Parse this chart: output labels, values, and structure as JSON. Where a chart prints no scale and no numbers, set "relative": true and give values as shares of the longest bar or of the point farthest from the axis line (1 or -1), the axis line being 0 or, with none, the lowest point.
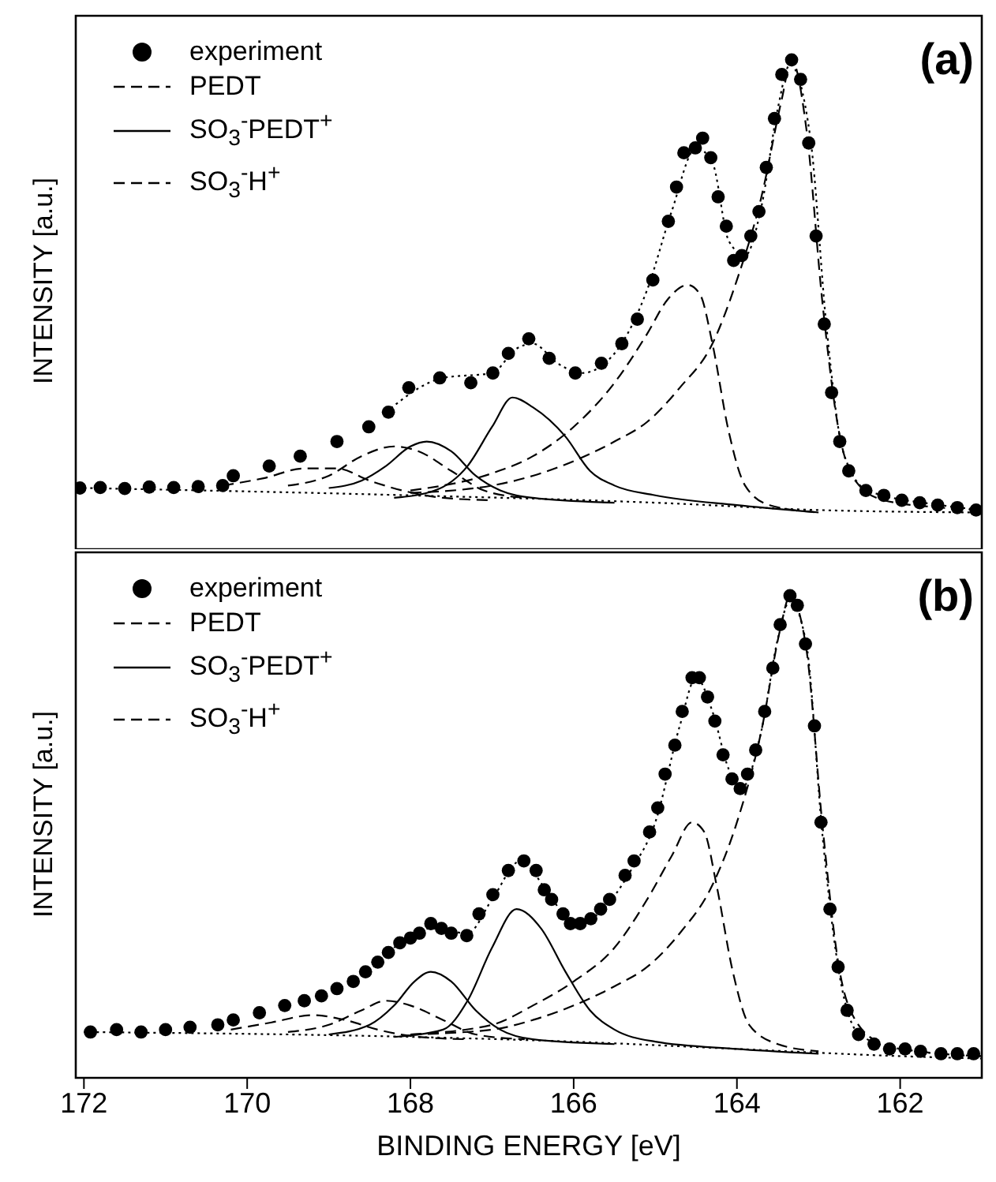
{
  "chart_data": [
    {
      "type": "line",
      "ylabel": "INTENSITY [a.u.]",
      "annotations": [
        "(a)"
      ],
      "relative": true,
      "xlim": [
        172.1,
        161.0
      ],
      "xticks": [
        172,
        170,
        168,
        166,
        164,
        162
      ],
      "tick_labels": false,
      "legend": "top left",
      "series": [
        {
          "name": "experiment",
          "type": "scatter",
          "marker": "circle",
          "color": "#000000",
          "x": [
            172.05,
            171.8,
            171.5,
            171.2,
            170.9,
            170.6,
            170.3,
            170.17,
            169.73,
            169.35,
            168.9,
            168.51,
            168.27,
            168.02,
            167.64,
            167.26,
            166.99,
            166.8,
            166.55,
            166.3,
            165.98,
            165.66,
            165.41,
            165.22,
            165.03,
            164.84,
            164.74,
            164.65,
            164.51,
            164.42,
            164.32,
            164.23,
            164.13,
            164.04,
            163.94,
            163.83,
            163.73,
            163.64,
            163.54,
            163.45,
            163.33,
            163.22,
            163.12,
            163.03,
            162.93,
            162.84,
            162.74,
            162.63,
            162.42,
            162.2,
            161.98,
            161.76,
            161.54,
            161.3,
            161.07
          ],
          "values": [
            0.125,
            0.126,
            0.124,
            0.127,
            0.126,
            0.128,
            0.13,
            0.15,
            0.17,
            0.19,
            0.22,
            0.25,
            0.28,
            0.33,
            0.35,
            0.34,
            0.36,
            0.4,
            0.43,
            0.39,
            0.36,
            0.38,
            0.42,
            0.47,
            0.55,
            0.67,
            0.74,
            0.81,
            0.82,
            0.84,
            0.8,
            0.72,
            0.66,
            0.59,
            0.6,
            0.64,
            0.69,
            0.78,
            0.88,
            0.97,
            1.0,
            0.96,
            0.83,
            0.64,
            0.46,
            0.32,
            0.22,
            0.16,
            0.12,
            0.11,
            0.1,
            0.095,
            0.09,
            0.085,
            0.08
          ]
        },
        {
          "name": "PEDT",
          "line_style": "dashed",
          "marker": "none",
          "color": "#000000",
          "x": [
            168,
            167,
            166.5,
            166,
            165.5,
            165.1,
            164.7,
            164.3,
            164.0,
            163.7,
            163.45,
            163.33,
            163.15,
            162.95,
            162.75,
            162.55,
            162.2,
            161.5,
            161.0
          ],
          "values": [
            0.115,
            0.13,
            0.15,
            0.18,
            0.22,
            0.26,
            0.33,
            0.42,
            0.55,
            0.72,
            0.92,
            1.0,
            0.86,
            0.5,
            0.24,
            0.14,
            0.1,
            0.085,
            0.08
          ]
        },
        {
          "name": "SO$_{3}$$^{-}$PEDT$^{+}$",
          "type": "line",
          "line_style": "solid",
          "marker": "none",
          "color": "#000000",
          "x": [
            168.2,
            167.7,
            167.3,
            167.0,
            166.75,
            166.5,
            166.1,
            165.8,
            165.5,
            165.0,
            164.0,
            163.0
          ],
          "values": [
            0.105,
            0.12,
            0.17,
            0.25,
            0.31,
            0.29,
            0.23,
            0.16,
            0.13,
            0.11,
            0.09,
            0.075
          ]
        },
        {
          "name": "SO$_{3}$$^{-}$H$^{+}$",
          "type": "line",
          "line_style": "dashed",
          "marker": "none",
          "color": "#000000",
          "x": [
            169.5,
            169.0,
            168.6,
            168.2,
            167.9,
            167.5,
            167.1,
            166.6
          ],
          "values": [
            0.13,
            0.15,
            0.19,
            0.21,
            0.2,
            0.16,
            0.12,
            0.105
          ]
        },
        {
          "type": "line",
          "line_style": "dashed",
          "marker": "none",
          "color": "#000000",
          "x": [
            168,
            167,
            166.5,
            166,
            165.5,
            165.1,
            164.85,
            164.6,
            164.45,
            164.3,
            164.1,
            163.9,
            163.6,
            163.0
          ],
          "values": [
            0.12,
            0.155,
            0.19,
            0.25,
            0.34,
            0.44,
            0.51,
            0.54,
            0.52,
            0.42,
            0.24,
            0.13,
            0.09,
            0.075
          ]
        },
        {
          "type": "line",
          "line_style": "solid",
          "marker": "none",
          "color": "#000000",
          "x": [
            169.0,
            168.6,
            168.3,
            168.0,
            167.8,
            167.5,
            167.2,
            166.9,
            166.5,
            165.5
          ],
          "values": [
            0.125,
            0.14,
            0.17,
            0.21,
            0.22,
            0.2,
            0.15,
            0.12,
            0.105,
            0.095
          ]
        },
        {
          "type": "line",
          "line_style": "dashed",
          "marker": "none",
          "color": "#000000",
          "x": [
            170.3,
            169.8,
            169.3,
            168.9,
            168.5,
            168.1,
            167.6,
            167.0
          ],
          "values": [
            0.13,
            0.145,
            0.165,
            0.165,
            0.14,
            0.12,
            0.105,
            0.1
          ]
        },
        {
          "type": "line",
          "line_style": "dotted",
          "marker": "none",
          "color": "#000000",
          "x": [
            172,
            168,
            165,
            163,
            161
          ],
          "values": [
            0.125,
            0.11,
            0.095,
            0.08,
            0.075
          ]
        },
        {
          "type": "line",
          "line_style": "dotted",
          "marker": "none",
          "color": "#000000",
          "x": [
            168.3,
            167.6,
            167.0,
            166.7,
            166.5,
            166.2,
            165.9,
            165.5,
            165.1,
            164.8,
            164.5,
            164.3,
            164.1,
            163.9,
            163.7,
            163.5,
            163.35,
            163.1,
            162.9,
            162.7,
            162.4,
            161.5,
            161.0
          ],
          "values": [
            0.28,
            0.35,
            0.36,
            0.41,
            0.42,
            0.38,
            0.36,
            0.4,
            0.53,
            0.69,
            0.82,
            0.79,
            0.63,
            0.6,
            0.7,
            0.9,
            0.99,
            0.84,
            0.45,
            0.2,
            0.12,
            0.09,
            0.08
          ]
        }
      ]
    },
    {
      "type": "line",
      "xlabel": "BINDING ENERGY [eV]",
      "ylabel": "INTENSITY [a.u.]",
      "annotations": [
        "(b)"
      ],
      "relative": true,
      "xlim": [
        172.1,
        161.0
      ],
      "xticks": [
        172,
        170,
        168,
        166,
        164,
        162
      ],
      "tick_labels": "x",
      "legend": "top left",
      "series": [
        {
          "name": "experiment",
          "type": "scatter",
          "marker": "circle",
          "color": "#000000",
          "x": [
            171.92,
            171.6,
            171.3,
            171.0,
            170.7,
            170.36,
            170.17,
            169.85,
            169.54,
            169.3,
            169.09,
            168.9,
            168.7,
            168.55,
            168.4,
            168.27,
            168.13,
            168.0,
            167.89,
            167.75,
            167.62,
            167.5,
            167.31,
            167.16,
            166.99,
            166.8,
            166.61,
            166.46,
            166.36,
            166.27,
            166.13,
            166.04,
            165.92,
            165.79,
            165.67,
            165.56,
            165.37,
            165.26,
            165.07,
            164.97,
            164.88,
            164.76,
            164.67,
            164.55,
            164.46,
            164.36,
            164.27,
            164.17,
            164.06,
            163.96,
            163.87,
            163.77,
            163.66,
            163.56,
            163.47,
            163.35,
            163.26,
            163.16,
            163.05,
            162.97,
            162.86,
            162.76,
            162.65,
            162.51,
            162.32,
            162.13,
            161.94,
            161.75,
            161.5,
            161.3,
            161.1
          ],
          "values": [
            0.095,
            0.1,
            0.095,
            0.1,
            0.105,
            0.11,
            0.12,
            0.135,
            0.15,
            0.16,
            0.17,
            0.185,
            0.2,
            0.22,
            0.24,
            0.26,
            0.28,
            0.29,
            0.3,
            0.32,
            0.31,
            0.3,
            0.295,
            0.34,
            0.38,
            0.43,
            0.45,
            0.43,
            0.39,
            0.37,
            0.34,
            0.32,
            0.32,
            0.33,
            0.35,
            0.37,
            0.42,
            0.45,
            0.51,
            0.56,
            0.63,
            0.69,
            0.76,
            0.83,
            0.83,
            0.79,
            0.74,
            0.67,
            0.62,
            0.6,
            0.63,
            0.68,
            0.76,
            0.85,
            0.94,
            1.0,
            0.98,
            0.9,
            0.73,
            0.53,
            0.35,
            0.23,
            0.14,
            0.09,
            0.07,
            0.06,
            0.06,
            0.055,
            0.05,
            0.05,
            0.05
          ]
        },
        {
          "name": "PEDT",
          "line_style": "dashed",
          "marker": "none",
          "color": "#000000",
          "x": [
            168,
            167,
            166.5,
            166,
            165.5,
            165.1,
            164.7,
            164.3,
            164.0,
            163.7,
            163.47,
            163.35,
            163.15,
            162.95,
            162.75,
            162.55,
            162.2,
            161.5,
            161.0
          ],
          "values": [
            0.09,
            0.1,
            0.12,
            0.15,
            0.19,
            0.23,
            0.3,
            0.4,
            0.53,
            0.72,
            0.93,
            1.0,
            0.89,
            0.52,
            0.23,
            0.12,
            0.07,
            0.05,
            0.045
          ]
        },
        {
          "name": "SO$_{3}$$^{-}$PEDT$^{+}$",
          "type": "line",
          "line_style": "solid",
          "marker": "none",
          "color": "#000000",
          "x": [
            168.2,
            167.6,
            167.3,
            167.0,
            166.7,
            166.4,
            166.1,
            165.8,
            165.5,
            165.0,
            164.0,
            163.0
          ],
          "values": [
            0.085,
            0.1,
            0.16,
            0.27,
            0.35,
            0.31,
            0.22,
            0.14,
            0.1,
            0.075,
            0.06,
            0.05
          ]
        },
        {
          "name": "SO$_{3}$$^{-}$H$^{+}$",
          "type": "line",
          "line_style": "dashed",
          "marker": "none",
          "color": "#000000",
          "x": [
            169.5,
            169.0,
            168.6,
            168.3,
            168.0,
            167.6,
            167.2,
            166.6
          ],
          "values": [
            0.095,
            0.11,
            0.14,
            0.16,
            0.15,
            0.12,
            0.09,
            0.08
          ]
        },
        {
          "type": "line",
          "line_style": "dashed",
          "marker": "none",
          "color": "#000000",
          "x": [
            168,
            167,
            166.5,
            166,
            165.5,
            165.1,
            164.8,
            164.55,
            164.4,
            164.25,
            164.05,
            163.85,
            163.5,
            163.0
          ],
          "values": [
            0.09,
            0.11,
            0.15,
            0.2,
            0.27,
            0.37,
            0.46,
            0.53,
            0.51,
            0.4,
            0.22,
            0.11,
            0.07,
            0.055
          ]
        },
        {
          "type": "line",
          "line_style": "solid",
          "marker": "none",
          "color": "#000000",
          "x": [
            169.0,
            168.5,
            168.2,
            167.95,
            167.75,
            167.5,
            167.2,
            166.9,
            166.5,
            165.5
          ],
          "values": [
            0.09,
            0.11,
            0.15,
            0.2,
            0.22,
            0.2,
            0.14,
            0.1,
            0.08,
            0.07
          ]
        },
        {
          "type": "line",
          "line_style": "dashed",
          "marker": "none",
          "color": "#000000",
          "x": [
            170.2,
            169.7,
            169.2,
            168.8,
            168.4,
            167.9,
            167.3
          ],
          "values": [
            0.1,
            0.115,
            0.13,
            0.12,
            0.1,
            0.085,
            0.08
          ]
        },
        {
          "type": "line",
          "line_style": "dotted",
          "marker": "none",
          "color": "#000000",
          "x": [
            172,
            168,
            166,
            164,
            162,
            161
          ],
          "values": [
            0.095,
            0.085,
            0.075,
            0.06,
            0.045,
            0.04
          ]
        },
        {
          "type": "line",
          "line_style": "dotted",
          "marker": "none",
          "color": "#000000",
          "x": [
            168.2,
            167.75,
            167.3,
            167.0,
            166.65,
            166.3,
            166.0,
            165.7,
            165.3,
            165.0,
            164.7,
            164.5,
            164.3,
            164.1,
            163.95,
            163.7,
            163.5,
            163.35,
            163.15,
            162.95,
            162.75,
            162.5,
            162.0,
            161.0
          ],
          "values": [
            0.27,
            0.31,
            0.3,
            0.37,
            0.45,
            0.38,
            0.32,
            0.34,
            0.43,
            0.53,
            0.73,
            0.83,
            0.76,
            0.64,
            0.6,
            0.72,
            0.91,
            0.99,
            0.9,
            0.5,
            0.22,
            0.09,
            0.06,
            0.045
          ]
        }
      ]
    }
  ]
}
